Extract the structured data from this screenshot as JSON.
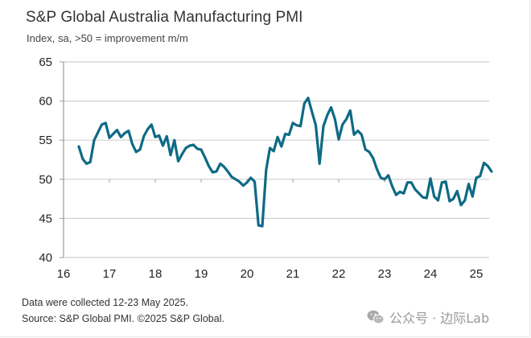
{
  "header": {
    "title": "S&P Global Australia Manufacturing PMI",
    "subtitle": "Index, sa, >50 = improvement m/m"
  },
  "footer": {
    "note": "Data were collected 12-23 May 2025.",
    "source": "Source: S&P Global PMI. ©2025 S&P Global.",
    "watermark": "公众号 · 边际Lab",
    "watermark_icon": "wechat-icon"
  },
  "colors": {
    "line": "#0e6a85",
    "grid": "#cfcfcf",
    "axis": "#9a9a9a"
  },
  "chart_data": {
    "type": "line",
    "title": "S&P Global Australia Manufacturing PMI",
    "subtitle": "Index, sa, >50 = improvement m/m",
    "xlabel": "",
    "ylabel": "",
    "ylim": [
      40,
      65
    ],
    "xlim": [
      2016,
      2025.42
    ],
    "yticks": [
      40,
      45,
      50,
      55,
      60,
      65
    ],
    "ytick_labels": [
      "40",
      "45",
      "50",
      "55",
      "60",
      "65"
    ],
    "xticks": [
      2016,
      2017,
      2018,
      2019,
      2020,
      2021,
      2022,
      2023,
      2024,
      2025
    ],
    "xtick_labels": [
      "16",
      "17",
      "18",
      "19",
      "20",
      "21",
      "22",
      "23",
      "24",
      "25"
    ],
    "grid": "horizontal",
    "legend": "none",
    "start": "2016-05",
    "frequency": "monthly",
    "series": [
      {
        "name": "Australia Manufacturing PMI",
        "values": [
          54.2,
          52.6,
          52.0,
          52.2,
          55.0,
          56.0,
          57.0,
          57.2,
          55.3,
          55.8,
          56.3,
          55.4,
          55.9,
          56.2,
          54.5,
          53.5,
          53.8,
          55.5,
          56.4,
          57.0,
          55.4,
          55.6,
          54.3,
          55.5,
          53.1,
          55.0,
          52.3,
          53.2,
          54.0,
          54.3,
          54.4,
          53.9,
          53.8,
          52.8,
          51.7,
          50.9,
          51.0,
          52.0,
          51.6,
          51.0,
          50.3,
          50.0,
          49.7,
          49.2,
          49.6,
          50.2,
          49.7,
          44.1,
          44.0,
          51.2,
          54.0,
          53.6,
          55.4,
          54.2,
          55.8,
          55.7,
          57.2,
          56.9,
          56.8,
          59.7,
          60.4,
          58.6,
          56.9,
          52.0,
          56.8,
          58.2,
          59.2,
          57.7,
          55.1,
          57.0,
          57.7,
          58.8,
          55.7,
          56.2,
          55.7,
          53.8,
          53.5,
          52.7,
          51.3,
          50.2,
          50.0,
          50.5,
          49.1,
          48.0,
          48.4,
          48.2,
          49.6,
          49.6,
          48.7,
          48.2,
          47.7,
          47.6,
          50.1,
          47.8,
          47.3,
          49.6,
          49.7,
          47.2,
          47.5,
          48.5,
          46.7,
          47.3,
          49.4,
          47.8,
          50.2,
          50.4,
          52.1,
          51.7,
          51.0
        ]
      }
    ]
  }
}
